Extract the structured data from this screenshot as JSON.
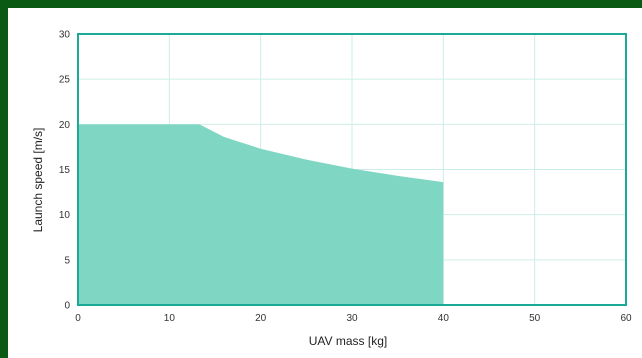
{
  "colors": {
    "background": "#0b5a14",
    "panel": "#ffffff",
    "area_fill": "#7fd6c2",
    "axis": "#1aaa96",
    "grid": "#cdeee8"
  },
  "chart_data": {
    "type": "area",
    "xlabel": "UAV mass [kg]",
    "ylabel": "Launch speed [m/s]",
    "xlim": [
      0,
      60
    ],
    "ylim": [
      0,
      30
    ],
    "xticks": [
      "0",
      "10",
      "20",
      "30",
      "40",
      "50",
      "60"
    ],
    "yticks": [
      "0",
      "5",
      "10",
      "15",
      "20",
      "25",
      "30"
    ],
    "grid": true,
    "series": [
      {
        "x": [
          0,
          13.3,
          16,
          20,
          25,
          30,
          35,
          40
        ],
        "y": [
          20,
          20,
          18.6,
          17.3,
          16.1,
          15.1,
          14.3,
          13.6
        ]
      }
    ]
  }
}
